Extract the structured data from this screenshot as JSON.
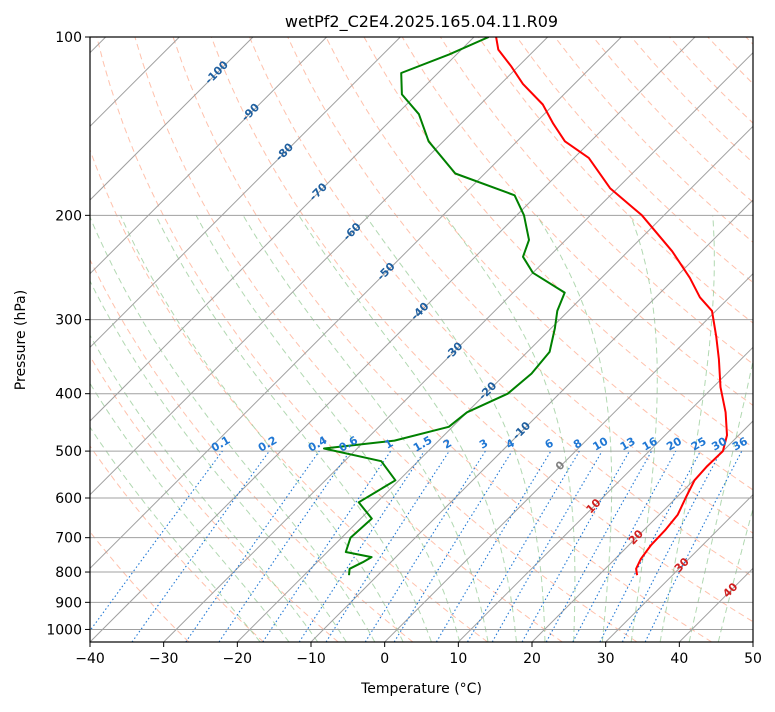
{
  "chart_data": {
    "type": "skew-t",
    "title": "wetPf2_C2E4.2025.165.04.11.R09",
    "xlabel": "Temperature (°C)",
    "ylabel": "Pressure (hPa)",
    "xlim": [
      -40,
      50
    ],
    "ylim_hpa": [
      1050,
      100
    ],
    "log_pressure_axis": true,
    "grid": true,
    "x_ticks": [
      -40,
      -30,
      -20,
      -10,
      0,
      10,
      20,
      30,
      40,
      50
    ],
    "x_tick_labels": [
      "−40",
      "−30",
      "−20",
      "−10",
      "0",
      "10",
      "20",
      "30",
      "40",
      "50"
    ],
    "y_ticks": [
      100,
      200,
      300,
      400,
      500,
      600,
      700,
      800,
      900,
      1000
    ],
    "y_tick_labels": [
      "100",
      "200",
      "300",
      "400",
      "500",
      "600",
      "700",
      "800",
      "900",
      "1000"
    ],
    "series": [
      {
        "color": "#ff0000",
        "points": [
          {
            "p": 810,
            "t": 25.2
          },
          {
            "p": 790,
            "t": 24.2
          },
          {
            "p": 760,
            "t": 23.5
          },
          {
            "p": 720,
            "t": 23.0
          },
          {
            "p": 680,
            "t": 22.9
          },
          {
            "p": 640,
            "t": 22.5
          },
          {
            "p": 600,
            "t": 21.3
          },
          {
            "p": 560,
            "t": 20.1
          },
          {
            "p": 530,
            "t": 19.9
          },
          {
            "p": 500,
            "t": 20.0
          },
          {
            "p": 470,
            "t": 18.4
          },
          {
            "p": 430,
            "t": 15.1
          },
          {
            "p": 390,
            "t": 11.0
          },
          {
            "p": 350,
            "t": 7.0
          },
          {
            "p": 320,
            "t": 3.5
          },
          {
            "p": 290,
            "t": -0.5
          },
          {
            "p": 275,
            "t": -4.0
          },
          {
            "p": 255,
            "t": -8.0
          },
          {
            "p": 230,
            "t": -14.0
          },
          {
            "p": 200,
            "t": -23.0
          },
          {
            "p": 180,
            "t": -31.0
          },
          {
            "p": 160,
            "t": -38.0
          },
          {
            "p": 150,
            "t": -43.5
          },
          {
            "p": 140,
            "t": -47.5
          },
          {
            "p": 130,
            "t": -51.5
          },
          {
            "p": 120,
            "t": -57.0
          },
          {
            "p": 112,
            "t": -61.0
          },
          {
            "p": 105,
            "t": -65.0
          },
          {
            "p": 100,
            "t": -67.0
          }
        ]
      },
      {
        "color": "#008000",
        "points": [
          {
            "p": 810,
            "t": -13.9
          },
          {
            "p": 790,
            "t": -14.7
          },
          {
            "p": 770,
            "t": -13.8
          },
          {
            "p": 755,
            "t": -13.3
          },
          {
            "p": 740,
            "t": -17.5
          },
          {
            "p": 700,
            "t": -18.8
          },
          {
            "p": 650,
            "t": -18.5
          },
          {
            "p": 610,
            "t": -22.5
          },
          {
            "p": 585,
            "t": -21.5
          },
          {
            "p": 560,
            "t": -20.5
          },
          {
            "p": 520,
            "t": -25.0
          },
          {
            "p": 495,
            "t": -34.5
          },
          {
            "p": 480,
            "t": -26.0
          },
          {
            "p": 455,
            "t": -20.5
          },
          {
            "p": 430,
            "t": -20.0
          },
          {
            "p": 400,
            "t": -17.0
          },
          {
            "p": 370,
            "t": -16.5
          },
          {
            "p": 340,
            "t": -17.0
          },
          {
            "p": 310,
            "t": -19.5
          },
          {
            "p": 290,
            "t": -21.5
          },
          {
            "p": 270,
            "t": -23.0
          },
          {
            "p": 250,
            "t": -30.0
          },
          {
            "p": 235,
            "t": -33.5
          },
          {
            "p": 220,
            "t": -35.0
          },
          {
            "p": 200,
            "t": -39.0
          },
          {
            "p": 185,
            "t": -43.0
          },
          {
            "p": 170,
            "t": -54.0
          },
          {
            "p": 150,
            "t": -62.0
          },
          {
            "p": 135,
            "t": -67.0
          },
          {
            "p": 125,
            "t": -72.0
          },
          {
            "p": 115,
            "t": -75.0
          },
          {
            "p": 107,
            "t": -71.0
          },
          {
            "p": 100,
            "t": -68.0
          }
        ]
      }
    ],
    "isotherm_labels": [
      "-100",
      "-90",
      "-80",
      "-70",
      "-60",
      "-50",
      "-40",
      "-30",
      "-20",
      "-10",
      "0",
      "10",
      "20",
      "30",
      "40"
    ],
    "isotherm_label_values": [
      -100,
      -90,
      -80,
      -70,
      -60,
      -50,
      -40,
      -30,
      -20,
      -10,
      0,
      10,
      20,
      30,
      40
    ],
    "mixing_ratio_labels": [
      "0.1",
      "0.2",
      "0.4",
      "0.6",
      "1",
      "1.5",
      "2",
      "3",
      "4",
      "6",
      "8",
      "10",
      "13",
      "16",
      "20",
      "25",
      "30",
      "36"
    ],
    "mixing_ratio_values": [
      0.1,
      0.2,
      0.4,
      0.6,
      1,
      1.5,
      2,
      3,
      4,
      6,
      8,
      10,
      13,
      16,
      20,
      25,
      30,
      36
    ],
    "colors": {
      "temperature": "#ff0000",
      "dewpoint": "#008000",
      "isotherm_grid": "#a0a0a0",
      "dry_adiabat": "#ffa080",
      "moist_adiabat": "#90c890",
      "mixing_ratio": "#1f77d4",
      "cold_label": "#1f5f9f",
      "warm_label": "#d02020"
    }
  }
}
